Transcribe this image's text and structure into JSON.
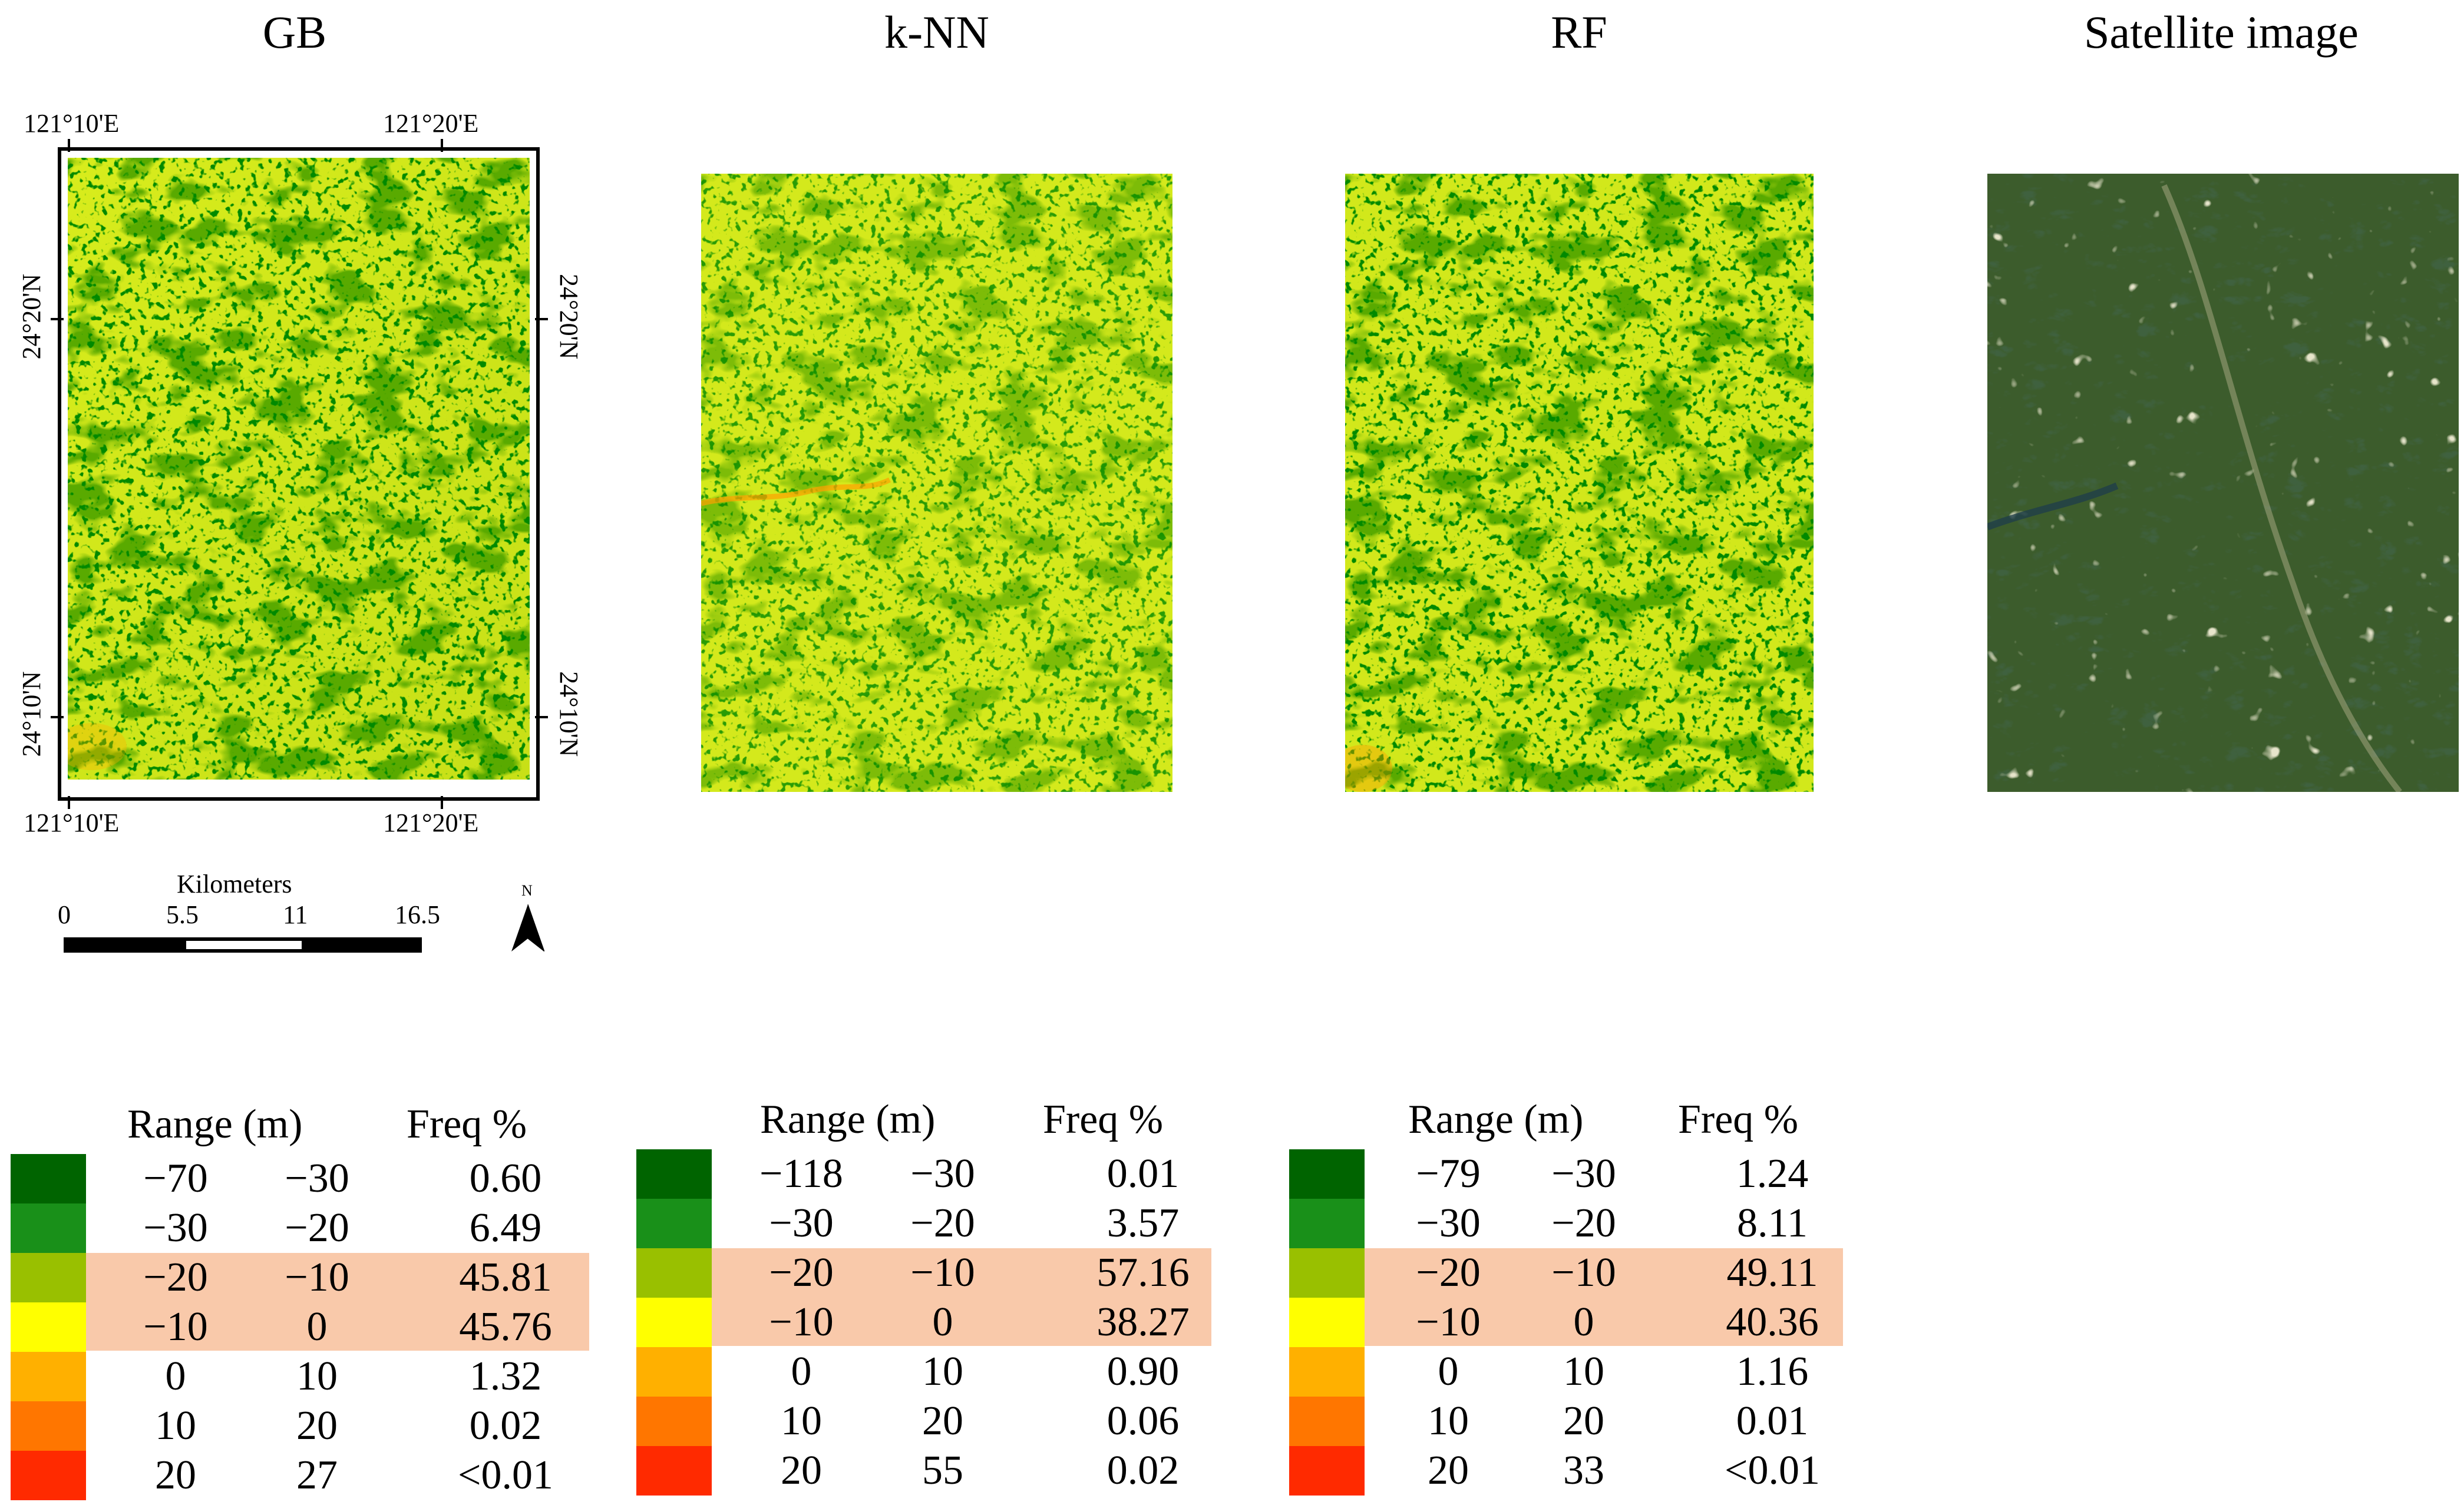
{
  "panel_titles": {
    "gb": "GB",
    "knn": "k-NN",
    "rf": "RF",
    "satellite": "Satellite image"
  },
  "map_frame": {
    "top_lon_left": "121°10'E",
    "top_lon_right": "121°20'E",
    "bottom_lon_left": "121°10'E",
    "bottom_lon_right": "121°20'E",
    "left_lat_top": "24°20'N",
    "left_lat_bottom": "24°10'N",
    "right_lat_top": "24°20'N",
    "right_lat_bottom": "24°10'N"
  },
  "scale_bar": {
    "unit_label": "Kilometers",
    "ticks": [
      "0",
      "5.5",
      "11",
      "16.5"
    ]
  },
  "north_arrow": {
    "label": "N"
  },
  "legend_colors": [
    "#006400",
    "#199019",
    "#99c000",
    "#ffff00",
    "#ffb000",
    "#ff7600",
    "#ff2a00"
  ],
  "highlight_color": "#f9c9aa",
  "legends": [
    {
      "model": "GB",
      "header_range": "Range (m)",
      "header_freq": "Freq %",
      "rows": [
        {
          "min": "−70",
          "max": "−30",
          "freq": "0.60"
        },
        {
          "min": "−30",
          "max": "−20",
          "freq": "6.49"
        },
        {
          "min": "−20",
          "max": "−10",
          "freq": "45.81"
        },
        {
          "min": "−10",
          "max": "0",
          "freq": "45.76"
        },
        {
          "min": "0",
          "max": "10",
          "freq": "1.32"
        },
        {
          "min": "10",
          "max": "20",
          "freq": "0.02"
        },
        {
          "min": "20",
          "max": "27",
          "freq": "<0.01"
        }
      ]
    },
    {
      "model": "k-NN",
      "header_range": "Range (m)",
      "header_freq": "Freq %",
      "rows": [
        {
          "min": "−118",
          "max": "−30",
          "freq": "0.01"
        },
        {
          "min": "−30",
          "max": "−20",
          "freq": "3.57"
        },
        {
          "min": "−20",
          "max": "−10",
          "freq": "57.16"
        },
        {
          "min": "−10",
          "max": "0",
          "freq": "38.27"
        },
        {
          "min": "0",
          "max": "10",
          "freq": "0.90"
        },
        {
          "min": "10",
          "max": "20",
          "freq": "0.06"
        },
        {
          "min": "20",
          "max": "55",
          "freq": "0.02"
        }
      ]
    },
    {
      "model": "RF",
      "header_range": "Range (m)",
      "header_freq": "Freq %",
      "rows": [
        {
          "min": "−79",
          "max": "−30",
          "freq": "1.24"
        },
        {
          "min": "−30",
          "max": "−20",
          "freq": "8.11"
        },
        {
          "min": "−20",
          "max": "−10",
          "freq": "49.11"
        },
        {
          "min": "−10",
          "max": "0",
          "freq": "40.36"
        },
        {
          "min": "0",
          "max": "10",
          "freq": "1.16"
        },
        {
          "min": "10",
          "max": "20",
          "freq": "0.01"
        },
        {
          "min": "20",
          "max": "33",
          "freq": "<0.01"
        }
      ]
    }
  ]
}
